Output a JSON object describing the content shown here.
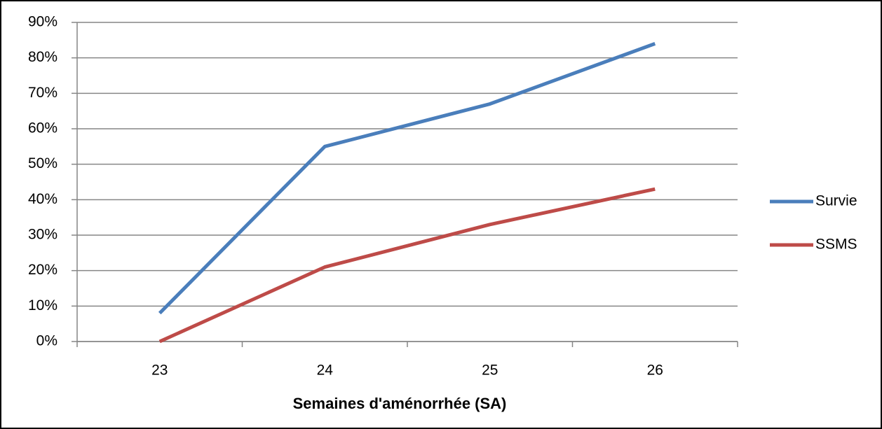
{
  "chart_data": {
    "type": "line",
    "x_label": "Semaines d'aménorrhée (SA)",
    "categories": [
      "23",
      "24",
      "25",
      "26"
    ],
    "series": [
      {
        "name": "Survie",
        "color": "#4a7ebb",
        "values": [
          8,
          55,
          67,
          84
        ]
      },
      {
        "name": "SSMS",
        "color": "#be4b48",
        "values": [
          0,
          21,
          33,
          43
        ]
      }
    ],
    "ylim": [
      0,
      90
    ],
    "yticks": [
      {
        "value": 0,
        "label": "0%"
      },
      {
        "value": 10,
        "label": "10%"
      },
      {
        "value": 20,
        "label": "20%"
      },
      {
        "value": 30,
        "label": "30%"
      },
      {
        "value": 40,
        "label": "40%"
      },
      {
        "value": 50,
        "label": "50%"
      },
      {
        "value": 60,
        "label": "60%"
      },
      {
        "value": 70,
        "label": "70%"
      },
      {
        "value": 80,
        "label": "80%"
      },
      {
        "value": 90,
        "label": "90%"
      }
    ],
    "grid": true,
    "legend": "right"
  }
}
